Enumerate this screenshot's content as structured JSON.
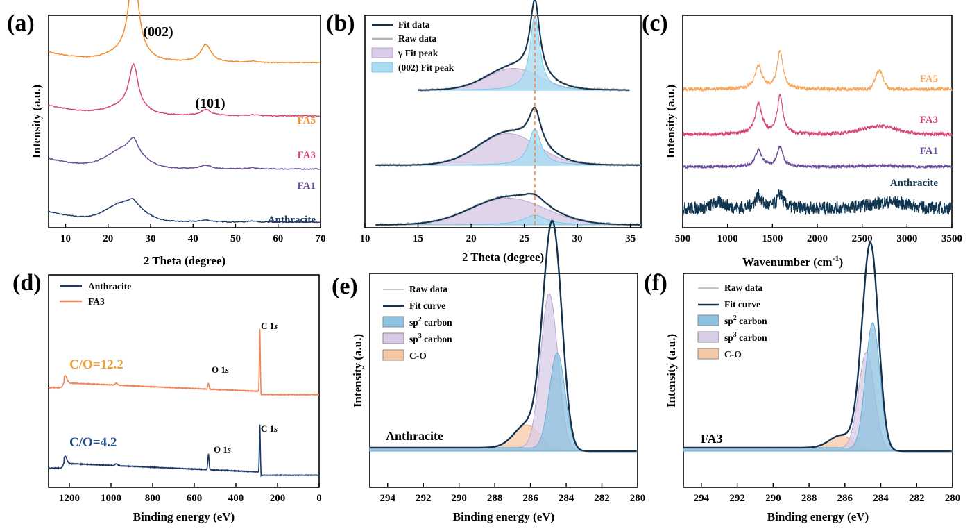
{
  "chart_data": [
    {
      "panel": "(a)",
      "type": "line",
      "xlabel": "2 Theta (degree)",
      "ylabel": "Intensity (a.u.)",
      "xlim": [
        6,
        70
      ],
      "xticks": [
        10,
        20,
        30,
        40,
        50,
        60,
        70
      ],
      "annotations": [
        "(002)",
        "(101)"
      ],
      "series": [
        {
          "name": "Anthracite",
          "color": "#1f3a68",
          "offset": 0.0,
          "peak002": 0.1,
          "peak101": 0.03
        },
        {
          "name": "FA1",
          "color": "#6b4c9a",
          "offset": 0.9,
          "peak002": 0.25,
          "peak101": 0.06
        },
        {
          "name": "FA3",
          "color": "#d6457a",
          "offset": 1.8,
          "peak002": 0.75,
          "peak101": 0.1
        },
        {
          "name": "FA5",
          "color": "#f28c28",
          "offset": 2.7,
          "peak002": 1.55,
          "peak101": 0.3
        }
      ]
    },
    {
      "panel": "(b)",
      "type": "line",
      "xlabel": "2 Theta (degree)",
      "xlim": [
        10,
        36
      ],
      "xticks": [
        10,
        15,
        20,
        25,
        30,
        35
      ],
      "reference_line": 26,
      "legend": [
        "Fit data",
        "Raw data",
        "γ Fit peak",
        "(002) Fit peak"
      ],
      "colors": {
        "fit": "#12324f",
        "raw": "#b0b0b0",
        "gamma": "#d9cce6",
        "p002": "#a9dcf2",
        "ref": "#f08a3c"
      },
      "curves": [
        {
          "name": "bottom",
          "gamma_amp": 0.55,
          "gamma_center": 23.5,
          "gamma_width": 3.5,
          "p002_amp": 0.2,
          "p002_center": 26.0,
          "p002_width": 1.3,
          "x_range": [
            11,
            36
          ]
        },
        {
          "name": "middle",
          "gamma_amp": 0.65,
          "gamma_center": 23.5,
          "gamma_width": 2.8,
          "p002_amp": 0.75,
          "p002_center": 26.0,
          "p002_width": 0.7,
          "x_range": [
            11,
            36
          ]
        },
        {
          "name": "top",
          "gamma_amp": 0.45,
          "gamma_center": 24.0,
          "gamma_width": 2.5,
          "p002_amp": 1.55,
          "p002_center": 26.0,
          "p002_width": 0.55,
          "x_range": [
            15,
            35
          ]
        }
      ]
    },
    {
      "panel": "(c)",
      "type": "line",
      "xlabel": "Wavenumber (cm",
      "xlabel_sup": "-1",
      "xlabel_end": ")",
      "ylabel": "Intensity (a.u.)",
      "xlim": [
        500,
        3500
      ],
      "xticks": [
        500,
        1000,
        1500,
        2000,
        2500,
        3000,
        3500
      ],
      "series": [
        {
          "name": "Anthracite",
          "color": "#0f3550",
          "offset": 0.0,
          "noise": 0.18,
          "d": 0.35,
          "g": 0.4,
          "twoD": 0.1
        },
        {
          "name": "FA1",
          "color": "#6b4c9a",
          "offset": 1.15,
          "noise": 0.04,
          "d": 0.45,
          "g": 0.55,
          "twoD": 0.03
        },
        {
          "name": "FA3",
          "color": "#d6457a",
          "offset": 2.05,
          "noise": 0.05,
          "d": 0.85,
          "g": 1.05,
          "twoD": 0.22
        },
        {
          "name": "FA5",
          "color": "#f5a85c",
          "offset": 3.3,
          "noise": 0.05,
          "d": 0.65,
          "g": 1.05,
          "twoD": 0.5
        }
      ]
    },
    {
      "panel": "(d)",
      "type": "line",
      "xlabel": "Binding energy (eV)",
      "xlim": [
        1300,
        0
      ],
      "xticks": [
        1200,
        1000,
        800,
        600,
        400,
        200,
        0
      ],
      "legend": [
        "Anthracite",
        "FA3"
      ],
      "series": [
        {
          "name": "Anthracite",
          "color": "#1f3a68",
          "ratio": "C/O=4.2",
          "c1s_amp": 1.0,
          "o1s_amp": 0.33
        },
        {
          "name": "FA3",
          "color": "#f0875a",
          "ratio": "C/O=12.2",
          "c1s_amp": 1.32,
          "o1s_amp": 0.13
        }
      ],
      "peak_labels": {
        "c1s": "C 1",
        "o1s": "O 1",
        "orbital": "s"
      }
    },
    {
      "panel": "(e)",
      "type": "line",
      "sample": "Anthracite",
      "xlabel": "Binding energy (eV)",
      "ylabel": "Intensity (a.u.)",
      "xlim": [
        295,
        280
      ],
      "xticks": [
        294,
        292,
        290,
        288,
        286,
        284,
        282,
        280
      ],
      "legend": [
        "Raw data",
        "Fit curve",
        "sp",
        "carbon",
        "C-O"
      ],
      "components": {
        "sp2": {
          "center": 284.5,
          "amp": 0.55,
          "width": 0.55
        },
        "sp3": {
          "center": 284.95,
          "amp": 0.88,
          "width": 0.6
        },
        "co": {
          "center": 286.2,
          "amp": 0.13,
          "width": 0.9
        }
      }
    },
    {
      "panel": "(f)",
      "type": "line",
      "sample": "FA3",
      "xlabel": "Binding energy (eV)",
      "ylabel": "Intensity (a.u.)",
      "xlim": [
        295,
        280
      ],
      "xticks": [
        294,
        292,
        290,
        288,
        286,
        284,
        282,
        280
      ],
      "legend": [
        "Raw data",
        "Fit curve",
        "sp",
        "carbon",
        "C-O"
      ],
      "components": {
        "sp2": {
          "center": 284.45,
          "amp": 0.72,
          "width": 0.5
        },
        "sp3": {
          "center": 284.8,
          "amp": 0.55,
          "width": 0.55
        },
        "co": {
          "center": 286.2,
          "amp": 0.07,
          "width": 0.8
        }
      }
    }
  ],
  "legend_e": {
    "raw": "Raw data",
    "fit": "Fit curve",
    "sp2": "sp",
    "sp3": "sp",
    "carbon": " carbon",
    "co": "C-O",
    "sup2": "2",
    "sup3": "3"
  },
  "colors": {
    "sp2": "#8cc2e0",
    "sp3": "#d9cce6",
    "co": "#f6c9a6",
    "fit": "#12324f",
    "raw": "#b0b0b0"
  }
}
